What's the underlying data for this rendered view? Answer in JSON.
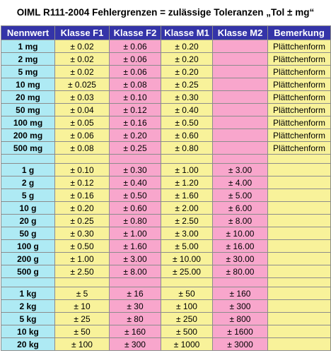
{
  "title": "OIML R111-2004 Fehlergrenzen = zulässige Toleranzen „Tol ± mg“",
  "headers": [
    "Nennwert",
    "Klasse F1",
    "Klasse F2",
    "Klasse M1",
    "Klasse M2",
    "Bemerkung"
  ],
  "groups": [
    [
      [
        "1 mg",
        "± 0.02",
        "± 0.06",
        "± 0.20",
        "",
        "Plättchenform"
      ],
      [
        "2 mg",
        "± 0.02",
        "± 0.06",
        "± 0.20",
        "",
        "Plättchenform"
      ],
      [
        "5 mg",
        "± 0.02",
        "± 0.06",
        "± 0.20",
        "",
        "Plättchenform"
      ],
      [
        "10 mg",
        "± 0.025",
        "± 0.08",
        "± 0.25",
        "",
        "Plättchenform"
      ],
      [
        "20 mg",
        "± 0.03",
        "± 0.10",
        "± 0.30",
        "",
        "Plättchenform"
      ],
      [
        "50 mg",
        "± 0.04",
        "± 0.12",
        "± 0.40",
        "",
        "Plättchenform"
      ],
      [
        "100 mg",
        "± 0.05",
        "± 0.16",
        "± 0.50",
        "",
        "Plättchenform"
      ],
      [
        "200 mg",
        "± 0.06",
        "± 0.20",
        "± 0.60",
        "",
        "Plättchenform"
      ],
      [
        "500 mg",
        "± 0.08",
        "± 0.25",
        "± 0.80",
        "",
        "Plättchenform"
      ]
    ],
    [
      [
        "1 g",
        "± 0.10",
        "± 0.30",
        "± 1.00",
        "± 3.00",
        ""
      ],
      [
        "2 g",
        "± 0.12",
        "± 0.40",
        "± 1.20",
        "± 4.00",
        ""
      ],
      [
        "5 g",
        "± 0.16",
        "± 0.50",
        "± 1.60",
        "± 5.00",
        ""
      ],
      [
        "10 g",
        "± 0.20",
        "± 0.60",
        "± 2.00",
        "± 6.00",
        ""
      ],
      [
        "20 g",
        "± 0.25",
        "± 0.80",
        "± 2.50",
        "± 8.00",
        ""
      ],
      [
        "50 g",
        "± 0.30",
        "± 1.00",
        "± 3.00",
        "± 10.00",
        ""
      ],
      [
        "100 g",
        "± 0.50",
        "± 1.60",
        "± 5.00",
        "± 16.00",
        ""
      ],
      [
        "200 g",
        "± 1.00",
        "± 3.00",
        "± 10.00",
        "± 30.00",
        ""
      ],
      [
        "500 g",
        "± 2.50",
        "± 8.00",
        "± 25.00",
        "± 80.00",
        ""
      ]
    ],
    [
      [
        "1 kg",
        "± 5",
        "± 16",
        "± 50",
        "± 160",
        ""
      ],
      [
        "2 kg",
        "± 10",
        "± 30",
        "± 100",
        "± 300",
        ""
      ],
      [
        "5 kg",
        "± 25",
        "± 80",
        "± 250",
        "± 800",
        ""
      ],
      [
        "10 kg",
        "± 50",
        "± 160",
        "± 500",
        "± 1600",
        ""
      ],
      [
        "20 kg",
        "± 100",
        "± 300",
        "± 1000",
        "± 3000",
        ""
      ]
    ]
  ],
  "colors": {
    "header": "#3434a8",
    "nennwert": "#aeeaf4",
    "yellow": "#f8f29a",
    "pink": "#f8a6cc"
  }
}
